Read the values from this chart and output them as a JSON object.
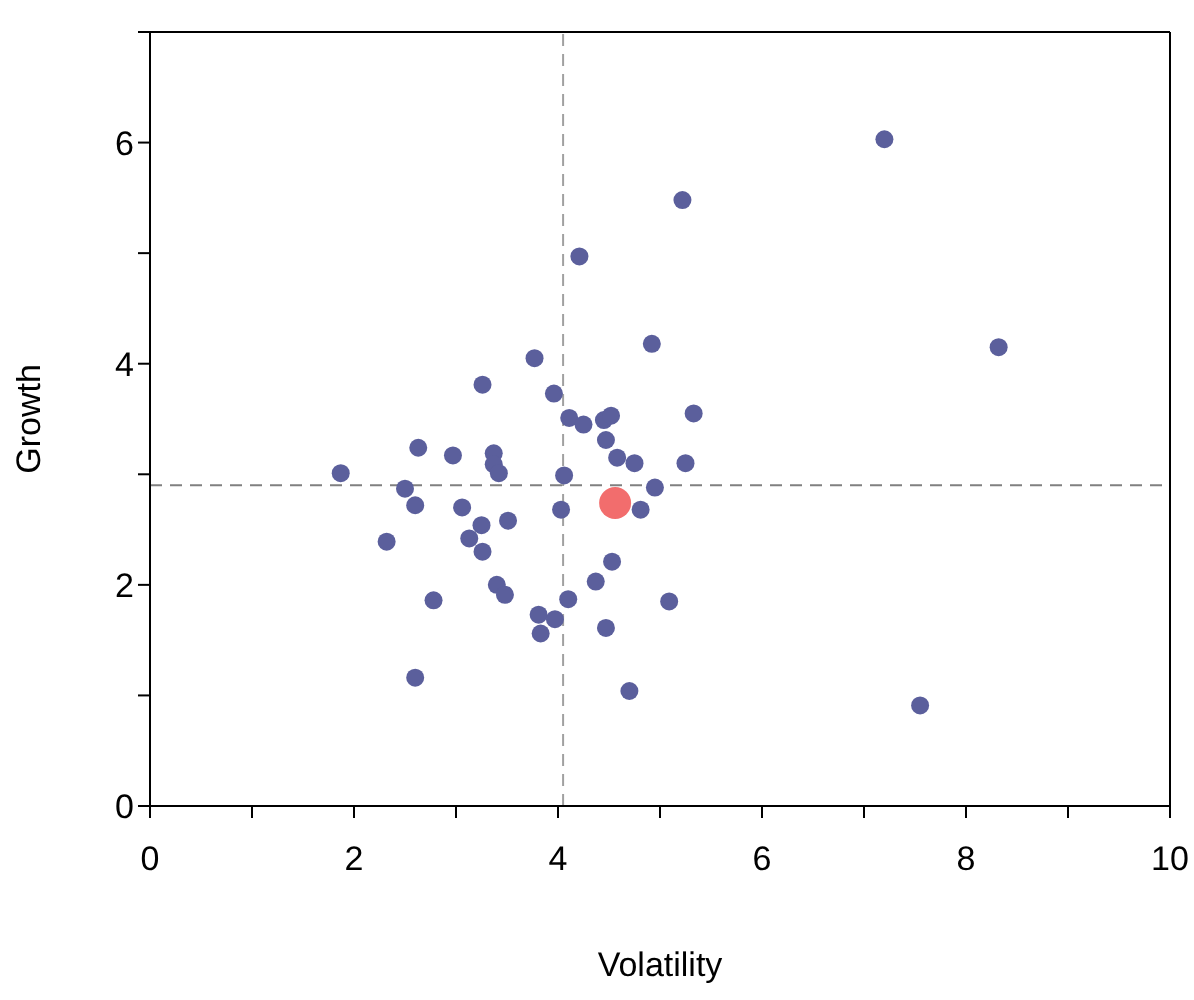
{
  "chart_data": {
    "type": "scatter",
    "xlabel": "Volatility",
    "ylabel": "Growth",
    "xlim": [
      0,
      10
    ],
    "ylim": [
      0,
      7
    ],
    "xticks": [
      0,
      {
        "value": 1,
        "label": null
      },
      2,
      {
        "value": 3,
        "label": null
      },
      4,
      {
        "value": 5,
        "label": null
      },
      6,
      {
        "value": 7,
        "label": null
      },
      8,
      {
        "value": 9,
        "label": null
      },
      10
    ],
    "yticks": [
      0,
      {
        "value": 1,
        "label": null
      },
      2,
      {
        "value": 3,
        "label": null
      },
      4,
      {
        "value": 5,
        "label": null
      },
      6,
      {
        "value": 7,
        "label": null
      }
    ],
    "grid": false,
    "marker": "circle",
    "ref_lines": [
      {
        "axis": "x",
        "value": 4.05,
        "color": "#a0a0a0",
        "line_style": "dashed"
      },
      {
        "axis": "y",
        "value": 2.9,
        "color": "#808080",
        "line_style": "dashed"
      }
    ],
    "series": [
      {
        "color": "#5b5f9c",
        "x": [
          7.2,
          5.22,
          4.21,
          4.92,
          8.32,
          3.77,
          3.26,
          3.96,
          4.11,
          4.25,
          4.45,
          4.52,
          5.33,
          4.47,
          4.58,
          4.75,
          5.25,
          2.63,
          2.97,
          3.37,
          3.37,
          3.42,
          1.87,
          4.06,
          2.5,
          4.95,
          2.6,
          3.06,
          4.03,
          4.81,
          3.25,
          3.51,
          3.13,
          3.26,
          2.32,
          4.53,
          4.37,
          3.4,
          3.48,
          2.78,
          4.1,
          5.09,
          3.81,
          3.97,
          3.83,
          4.47,
          2.6,
          4.7,
          7.55
        ],
        "values": [
          6.03,
          5.48,
          4.97,
          4.18,
          4.15,
          4.05,
          3.81,
          3.73,
          3.51,
          3.45,
          3.49,
          3.53,
          3.55,
          3.31,
          3.15,
          3.1,
          3.1,
          3.24,
          3.17,
          3.19,
          3.09,
          3.01,
          3.01,
          2.99,
          2.87,
          2.88,
          2.72,
          2.7,
          2.68,
          2.68,
          2.54,
          2.58,
          2.42,
          2.3,
          2.39,
          2.21,
          2.03,
          2.0,
          1.91,
          1.86,
          1.87,
          1.85,
          1.73,
          1.69,
          1.56,
          1.61,
          1.16,
          1.04,
          0.91
        ]
      },
      {
        "color": "#f26d6d",
        "x": [
          4.56
        ],
        "values": [
          2.74
        ]
      }
    ]
  }
}
